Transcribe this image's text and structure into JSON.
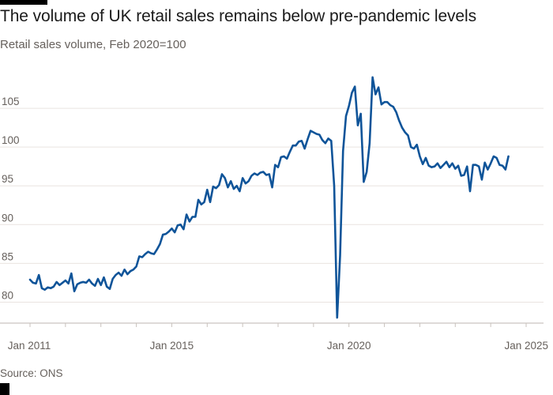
{
  "header": {
    "title": "The volume of UK retail sales remains below pre-pandemic levels",
    "subtitle": "Retail sales volume, Feb 2020=100"
  },
  "footer": {
    "source": "Source: ONS"
  },
  "colors": {
    "line": "#0f5499",
    "grid": "#e9e4e0",
    "text": "#66605c",
    "title": "#1a1a1a"
  },
  "chart_data": {
    "type": "line",
    "title": "The volume of UK retail sales remains below pre-pandemic levels",
    "subtitle": "Retail sales volume, Feb 2020=100",
    "xlabel": "",
    "ylabel": "",
    "ylim": [
      77.5,
      110
    ],
    "yticks": [
      80,
      85,
      90,
      95,
      100,
      105
    ],
    "xticks": [
      {
        "label": "Jan 2011",
        "index": 0
      },
      {
        "label": "Jan 2015",
        "index": 48
      },
      {
        "label": "Jan 2020",
        "index": 108
      },
      {
        "label": "Jan 2025",
        "index": 168
      }
    ],
    "grid": true,
    "legend": "none",
    "series": [
      {
        "name": "Retail sales volume",
        "start": "Jan 2011",
        "frequency": "monthly",
        "values": [
          82.9,
          82.5,
          82.4,
          83.5,
          81.8,
          81.6,
          81.9,
          81.8,
          82.0,
          82.6,
          82.2,
          82.5,
          82.8,
          82.4,
          83.7,
          81.4,
          82.3,
          82.5,
          82.6,
          82.5,
          82.9,
          82.4,
          82.1,
          83.0,
          82.2,
          83.2,
          82.0,
          81.7,
          83.0,
          83.5,
          83.8,
          83.4,
          84.2,
          83.6,
          84.0,
          84.2,
          84.6,
          85.9,
          85.8,
          86.2,
          86.5,
          86.3,
          86.2,
          86.8,
          87.5,
          88.7,
          88.8,
          89.1,
          89.5,
          89.0,
          89.9,
          90.0,
          89.4,
          91.3,
          90.4,
          91.0,
          91.0,
          93.2,
          92.6,
          92.9,
          94.5,
          92.9,
          94.9,
          94.7,
          95.1,
          96.5,
          96.0,
          94.8,
          95.6,
          94.6,
          95.0,
          94.3,
          96.0,
          95.3,
          95.6,
          96.3,
          96.6,
          96.4,
          96.7,
          96.8,
          96.4,
          96.5,
          94.8,
          97.7,
          97.4,
          98.7,
          98.8,
          98.5,
          99.4,
          100.2,
          100.2,
          100.7,
          100.8,
          99.8,
          101.0,
          102.1,
          101.9,
          101.7,
          101.6,
          100.9,
          100.5,
          101.1,
          100.8,
          95.0,
          78.0,
          86.0,
          99.5,
          104.0,
          105.3,
          107.0,
          107.8,
          102.8,
          104.3,
          95.5,
          96.8,
          100.5,
          109.0,
          106.8,
          107.7,
          105.5,
          105.8,
          105.8,
          105.4,
          105.2,
          104.5,
          103.4,
          102.5,
          101.9,
          101.5,
          100.0,
          99.8,
          100.3,
          98.8,
          97.8,
          98.6,
          97.6,
          97.4,
          97.5,
          97.9,
          97.3,
          97.7,
          98.1,
          97.4,
          97.9,
          97.2,
          97.6,
          96.3,
          96.4,
          97.5,
          94.3,
          97.7,
          97.7,
          97.5,
          95.8,
          98.0,
          97.1,
          97.9,
          98.8,
          98.6,
          97.7,
          97.6,
          97.1,
          98.8
        ]
      }
    ]
  }
}
